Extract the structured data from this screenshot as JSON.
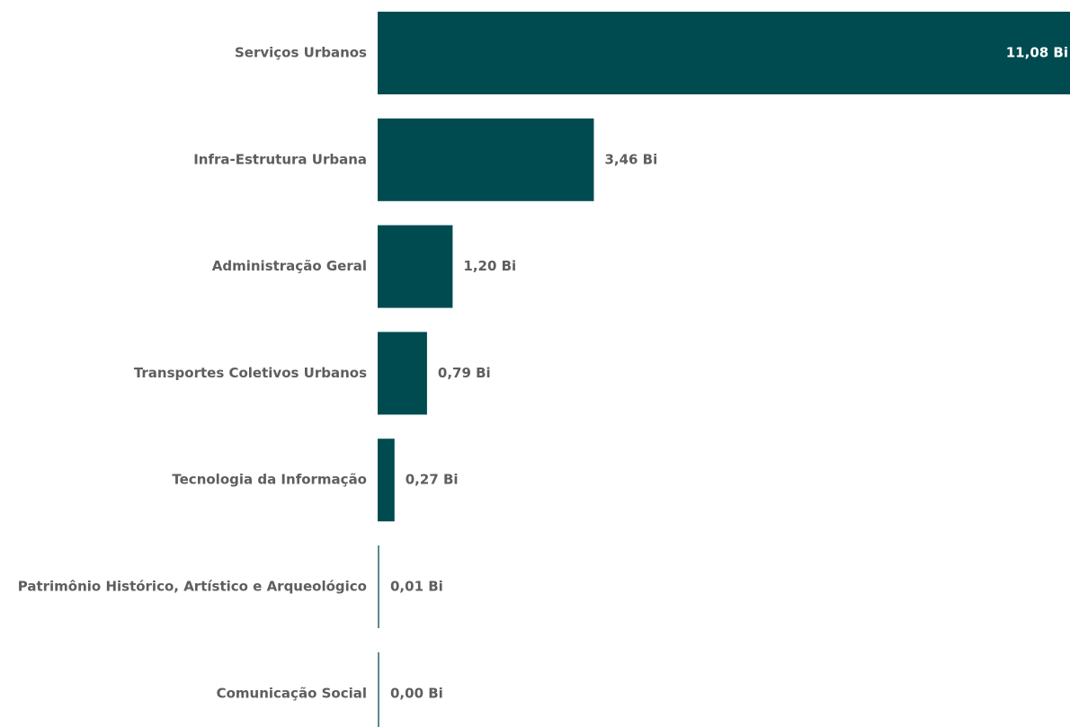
{
  "chart_data": {
    "type": "bar",
    "orientation": "horizontal",
    "categories": [
      "Serviços Urbanos",
      "Infra-Estrutura Urbana",
      "Administração Geral",
      "Transportes Coletivos Urbanos",
      "Tecnologia da Informação",
      "Patrimônio Histórico, Artístico e Arqueológico",
      "Comunicação Social"
    ],
    "values": [
      11.08,
      3.46,
      1.2,
      0.79,
      0.27,
      0.01,
      0.0
    ],
    "value_labels": [
      "11,08 Bi",
      "3,46 Bi",
      "1,20 Bi",
      "0,79 Bi",
      "0,27 Bi",
      "0,01 Bi",
      "0,00 Bi"
    ],
    "unit": "Bi",
    "xlim": [
      0,
      11.08
    ],
    "grid": false,
    "legend": "none",
    "bar_color": "#004b50"
  }
}
